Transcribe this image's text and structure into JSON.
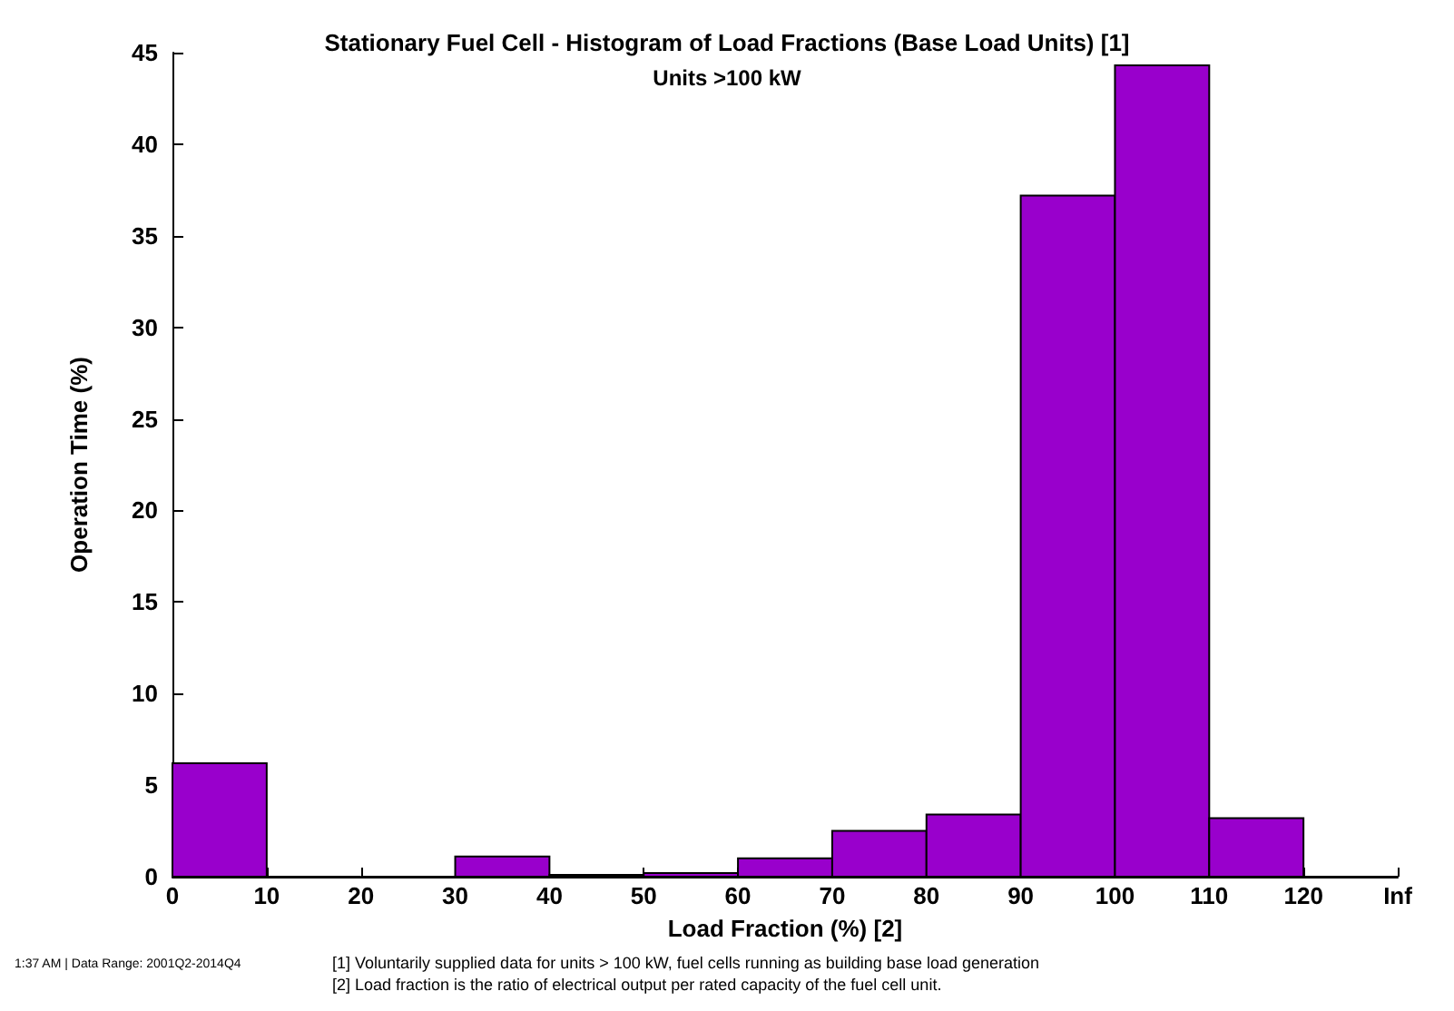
{
  "chart_data": {
    "type": "histogram",
    "title": "Stationary Fuel Cell - Histogram of Load Fractions (Base Load Units) [1]",
    "subtitle": "Units >100 kW",
    "xlabel": "Load Fraction (%) [2]",
    "ylabel": "Operation Time (%)",
    "bins": [
      0,
      10,
      20,
      30,
      40,
      50,
      60,
      70,
      80,
      90,
      100,
      110,
      120,
      130
    ],
    "values": [
      6.2,
      0,
      0,
      1.1,
      0.1,
      0.2,
      1.0,
      2.5,
      3.4,
      37.2,
      44.3,
      3.2,
      0
    ],
    "color": "#9900cc",
    "xlim": [
      0,
      130
    ],
    "xticks": [
      0,
      10,
      20,
      30,
      40,
      50,
      60,
      70,
      80,
      90,
      100,
      110,
      120,
      {
        "value": 130,
        "label": "Inf"
      }
    ],
    "ylim": [
      0,
      45
    ],
    "yticks": [
      0,
      5,
      10,
      15,
      20,
      25,
      30,
      35,
      40,
      45
    ],
    "grid": false,
    "annotations": [
      "1:37 AM | Data Range: 2001Q2-2014Q4",
      "[1] Voluntarily supplied data for units > 100 kW, fuel cells running as building base load generation",
      "[2] Load fraction is the ratio of electrical output per rated capacity of the fuel cell unit."
    ]
  }
}
